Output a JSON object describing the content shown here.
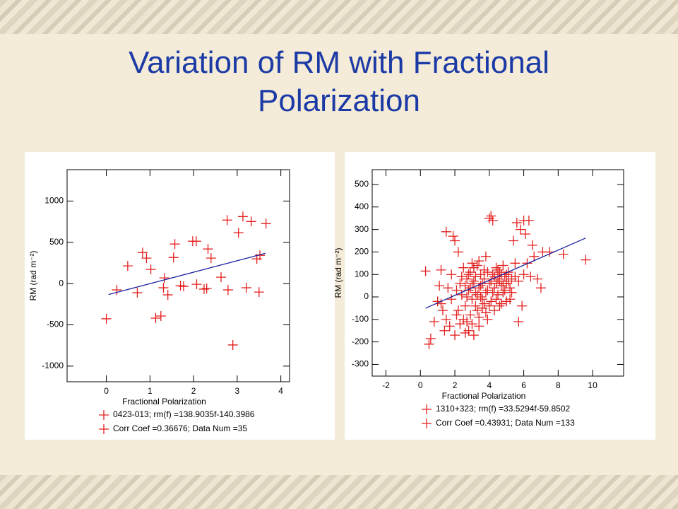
{
  "title": "Variation of RM with Fractional Polarization",
  "chart_data": [
    {
      "type": "scatter",
      "xlabel": "Fractional Polarization",
      "ylabel": "RM (rad m⁻²)",
      "xlim": [
        -0.9,
        4.2
      ],
      "ylim": [
        -1190,
        1380
      ],
      "xticks": [
        0,
        1,
        2,
        3,
        4
      ],
      "yticks": [
        -1000,
        -500,
        0,
        500,
        1000
      ],
      "series": [
        {
          "name": "0423-013;  rm(f) =138.9035f-140.3986",
          "color": "#e3201e",
          "x": [
            0.0,
            0.24,
            0.49,
            0.71,
            0.83,
            0.92,
            1.02,
            1.13,
            1.25,
            1.33,
            1.31,
            1.41,
            1.54,
            1.57,
            1.7,
            1.77,
            1.98,
            2.06,
            2.07,
            2.24,
            2.3,
            2.33,
            2.4,
            2.63,
            2.77,
            2.79,
            2.9,
            3.03,
            3.13,
            3.21,
            3.32,
            3.45,
            3.5,
            3.52,
            3.66
          ],
          "values": [
            -427,
            -77,
            214,
            -111,
            376,
            308,
            171,
            -419,
            -393,
            68,
            -51,
            -137,
            316,
            479,
            -26,
            -34,
            513,
            513,
            -9,
            -68,
            -60,
            419,
            308,
            77,
            769,
            -77,
            -744,
            615,
            812,
            -51,
            752,
            299,
            -103,
            342,
            726
          ]
        }
      ],
      "fit_line": {
        "color": "#1a22a0",
        "x": [
          0.05,
          3.65
        ],
        "values": [
          -133,
          367
        ]
      },
      "note": "Corr Coef =0.36676; Data Num =35"
    },
    {
      "type": "scatter",
      "xlabel": "Fractional Polarization",
      "ylabel": "RM (rad m⁻²)",
      "xlim": [
        -2.8,
        11.8
      ],
      "ylim": [
        -352,
        566
      ],
      "xticks": [
        -2,
        0,
        2,
        4,
        6,
        8,
        10
      ],
      "yticks": [
        -300,
        -200,
        -100,
        0,
        100,
        200,
        300,
        400,
        500
      ],
      "series": [
        {
          "name": "1310+323;  rm(f) =33.5294f-59.8502",
          "color": "#e3201e",
          "x": [
            0.3,
            0.5,
            0.6,
            0.8,
            1.0,
            1.1,
            1.2,
            1.3,
            1.4,
            1.5,
            1.6,
            1.7,
            1.8,
            1.9,
            2.0,
            2.0,
            2.1,
            2.2,
            2.3,
            2.3,
            2.4,
            2.5,
            2.5,
            2.6,
            2.7,
            2.7,
            2.8,
            2.8,
            2.9,
            2.9,
            3.0,
            3.0,
            3.1,
            3.1,
            3.2,
            3.2,
            3.3,
            3.3,
            3.4,
            3.4,
            3.5,
            3.5,
            3.6,
            3.6,
            3.7,
            3.7,
            3.8,
            3.8,
            3.9,
            4.0,
            4.0,
            4.1,
            4.1,
            4.2,
            4.2,
            4.3,
            4.4,
            4.4,
            4.5,
            4.6,
            4.6,
            4.7,
            4.8,
            4.8,
            4.9,
            5.0,
            5.0,
            5.1,
            5.2,
            5.3,
            5.4,
            5.5,
            5.6,
            5.7,
            5.8,
            5.9,
            6.0,
            6.1,
            6.2,
            6.3,
            6.4,
            6.5,
            6.6,
            6.8,
            7.0,
            7.1,
            7.5,
            8.3,
            9.6,
            1.2,
            1.5,
            1.8,
            2.1,
            2.2,
            2.4,
            2.6,
            2.6,
            2.7,
            2.8,
            2.9,
            3.0,
            3.0,
            3.1,
            3.2,
            3.3,
            3.4,
            3.4,
            3.5,
            3.6,
            3.7,
            3.8,
            3.9,
            3.9,
            4.0,
            4.1,
            4.2,
            4.3,
            4.3,
            4.4,
            4.5,
            4.5,
            4.6,
            4.7,
            4.7,
            4.8,
            4.9,
            5.0,
            5.1,
            5.2,
            5.3,
            5.5,
            5.7,
            6.0
          ],
          "values": [
            115,
            -210,
            -185,
            -110,
            -20,
            50,
            120,
            -60,
            -150,
            290,
            40,
            -130,
            100,
            270,
            250,
            -170,
            -80,
            200,
            60,
            -120,
            10,
            130,
            -100,
            -40,
            80,
            -110,
            30,
            -150,
            110,
            -80,
            60,
            -10,
            130,
            -170,
            20,
            90,
            -60,
            140,
            40,
            -130,
            0,
            100,
            -50,
            60,
            120,
            -30,
            180,
            20,
            -100,
            350,
            60,
            360,
            -20,
            340,
            100,
            40,
            130,
            -10,
            80,
            -40,
            110,
            50,
            20,
            140,
            90,
            60,
            -20,
            110,
            40,
            80,
            250,
            150,
            330,
            -110,
            300,
            -40,
            340,
            280,
            150,
            340,
            90,
            230,
            180,
            80,
            40,
            200,
            200,
            190,
            165,
            -30,
            -100,
            -10,
            30,
            -60,
            90,
            50,
            -160,
            0,
            100,
            40,
            -120,
            150,
            70,
            -40,
            10,
            -90,
            160,
            50,
            -10,
            80,
            -70,
            30,
            110,
            -40,
            70,
            20,
            -60,
            90,
            60,
            10,
            120,
            70,
            -30,
            100,
            60,
            30,
            100,
            70,
            -10,
            20,
            90,
            70,
            100
          ]
        }
      ],
      "fit_line": {
        "color": "#1a22a0",
        "x": [
          0.3,
          9.6
        ],
        "values": [
          -50,
          262
        ]
      },
      "note": "Corr Coef =0.43931; Data Num =133"
    }
  ]
}
